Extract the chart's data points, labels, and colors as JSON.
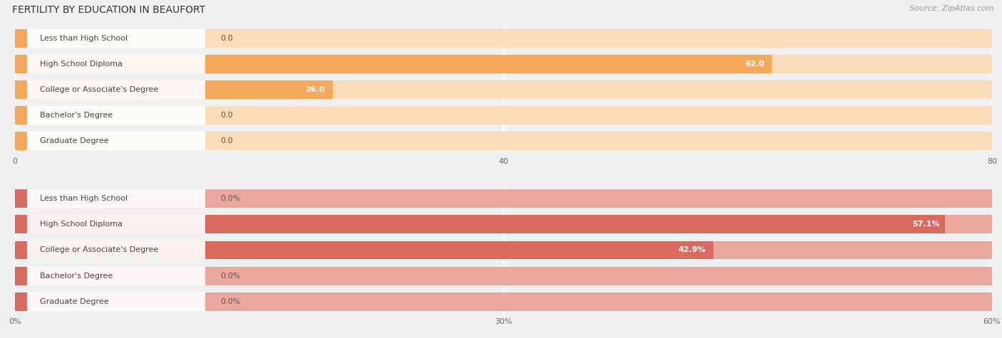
{
  "title": "FERTILITY BY EDUCATION IN BEAUFORT",
  "source": "Source: ZipAtlas.com",
  "top_chart": {
    "categories": [
      "Less than High School",
      "High School Diploma",
      "College or Associate's Degree",
      "Bachelor's Degree",
      "Graduate Degree"
    ],
    "values": [
      0.0,
      62.0,
      26.0,
      0.0,
      0.0
    ],
    "xlim": [
      0,
      80.0
    ],
    "xticks": [
      0.0,
      40.0,
      80.0
    ],
    "bar_color": "#F5A95B",
    "bar_color_light": "#FADCB8",
    "label_suffix": "",
    "zero_label": "0.0"
  },
  "bottom_chart": {
    "categories": [
      "Less than High School",
      "High School Diploma",
      "College or Associate's Degree",
      "Bachelor's Degree",
      "Graduate Degree"
    ],
    "values": [
      0.0,
      57.1,
      42.9,
      0.0,
      0.0
    ],
    "xlim": [
      0,
      60.0
    ],
    "xticks": [
      0.0,
      30.0,
      60.0
    ],
    "bar_color": "#D96B5E",
    "bar_color_light": "#EBA8A0",
    "label_suffix": "%",
    "zero_label": "0.0%"
  },
  "bg_color": "#f0f0f0",
  "title_fontsize": 10,
  "source_fontsize": 8,
  "label_fontsize": 8,
  "value_fontsize": 8,
  "tick_fontsize": 8
}
